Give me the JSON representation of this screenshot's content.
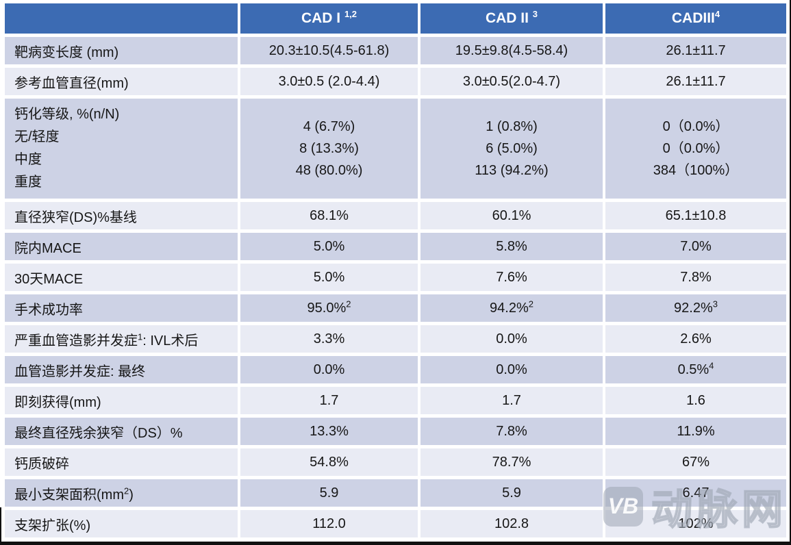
{
  "colors": {
    "header_bg": "#3C6BB3",
    "header_text": "#FFFFFF",
    "row_dark": "#CDD2E5",
    "row_light": "#E9EBF4",
    "body_text": "#161616",
    "bottom_border": "#101010",
    "watermark_gray": "#9EA6B4"
  },
  "header": {
    "cols": [
      {
        "text": "",
        "sup": ""
      },
      {
        "text": "CAD I ",
        "sup": "1,2"
      },
      {
        "text": "CAD II ",
        "sup": "3"
      },
      {
        "text": "CADIII",
        "sup": "4"
      }
    ]
  },
  "rows": [
    {
      "label": {
        "pre": "靶病变长度 (mm)",
        "sup": "",
        "post": ""
      },
      "cells": [
        {
          "text": "20.3±10.5(4.5-61.8)",
          "sup": ""
        },
        {
          "text": "19.5±9.8(4.5-58.4)",
          "sup": ""
        },
        {
          "text": "26.1±11.7",
          "sup": ""
        }
      ]
    },
    {
      "label": {
        "pre": "参考血管直径(mm)",
        "sup": "",
        "post": ""
      },
      "cells": [
        {
          "text": "3.0±0.5 (2.0-4.4)",
          "sup": ""
        },
        {
          "text": "3.0±0.5(2.0-4.7)",
          "sup": ""
        },
        {
          "text": "26.1±11.7",
          "sup": ""
        }
      ]
    },
    {
      "label_lines": [
        "钙化等级, %(n/N)",
        "无/轻度",
        "中度",
        "重度"
      ],
      "cells": [
        {
          "lines": [
            "4 (6.7%)",
            "8 (13.3%)",
            "48 (80.0%)"
          ]
        },
        {
          "lines": [
            "1 (0.8%)",
            "6 (5.0%)",
            "113 (94.2%)"
          ]
        },
        {
          "lines": [
            "0（0.0%）",
            "0（0.0%）",
            "384（100%）"
          ]
        }
      ]
    },
    {
      "label": {
        "pre": "直径狭窄(DS)%基线",
        "sup": "",
        "post": ""
      },
      "cells": [
        {
          "text": "68.1%",
          "sup": ""
        },
        {
          "text": "60.1%",
          "sup": ""
        },
        {
          "text": "65.1±10.8",
          "sup": ""
        }
      ]
    },
    {
      "label": {
        "pre": "院内MACE",
        "sup": "",
        "post": ""
      },
      "cells": [
        {
          "text": "5.0%",
          "sup": ""
        },
        {
          "text": "5.8%",
          "sup": ""
        },
        {
          "text": "7.0%",
          "sup": ""
        }
      ]
    },
    {
      "label": {
        "pre": "30天MACE",
        "sup": "",
        "post": ""
      },
      "cells": [
        {
          "text": "5.0%",
          "sup": ""
        },
        {
          "text": "7.6%",
          "sup": ""
        },
        {
          "text": "7.8%",
          "sup": ""
        }
      ]
    },
    {
      "label": {
        "pre": "手术成功率",
        "sup": "",
        "post": ""
      },
      "cells": [
        {
          "text": "95.0%",
          "sup": "2"
        },
        {
          "text": "94.2%",
          "sup": "2"
        },
        {
          "text": "92.2%",
          "sup": "3"
        }
      ]
    },
    {
      "label": {
        "pre": "严重血管造影并发症",
        "sup": "1",
        "post": ": IVL术后"
      },
      "cells": [
        {
          "text": "3.3%",
          "sup": ""
        },
        {
          "text": "0.0%",
          "sup": ""
        },
        {
          "text": "2.6%",
          "sup": ""
        }
      ]
    },
    {
      "label": {
        "pre": "血管造影并发症: 最终",
        "sup": "",
        "post": ""
      },
      "cells": [
        {
          "text": "0.0%",
          "sup": ""
        },
        {
          "text": "0.0%",
          "sup": ""
        },
        {
          "text": "0.5%",
          "sup": "4"
        }
      ]
    },
    {
      "label": {
        "pre": "即刻获得(mm)",
        "sup": "",
        "post": ""
      },
      "cells": [
        {
          "text": "1.7",
          "sup": ""
        },
        {
          "text": "1.7",
          "sup": ""
        },
        {
          "text": "1.6",
          "sup": ""
        }
      ]
    },
    {
      "label": {
        "pre": "最终直径残余狭窄（DS）%",
        "sup": "",
        "post": ""
      },
      "cells": [
        {
          "text": "13.3%",
          "sup": ""
        },
        {
          "text": "7.8%",
          "sup": ""
        },
        {
          "text": "11.9%",
          "sup": ""
        }
      ]
    },
    {
      "label": {
        "pre": "钙质破碎",
        "sup": "",
        "post": ""
      },
      "cells": [
        {
          "text": "54.8%",
          "sup": ""
        },
        {
          "text": "78.7%",
          "sup": ""
        },
        {
          "text": "67%",
          "sup": ""
        }
      ]
    },
    {
      "label": {
        "pre": "最小支架面积(mm",
        "sup": "2",
        "post": ")"
      },
      "cells": [
        {
          "text": "5.9",
          "sup": ""
        },
        {
          "text": "5.9",
          "sup": ""
        },
        {
          "text": "6.47",
          "sup": ""
        }
      ]
    },
    {
      "label": {
        "pre": "支架扩张(%)",
        "sup": "",
        "post": ""
      },
      "cells": [
        {
          "text": "112.0",
          "sup": ""
        },
        {
          "text": "102.8",
          "sup": ""
        },
        {
          "text": "102%",
          "sup": ""
        }
      ]
    }
  ],
  "watermark": {
    "logo": "VB",
    "text": "动脉网"
  }
}
